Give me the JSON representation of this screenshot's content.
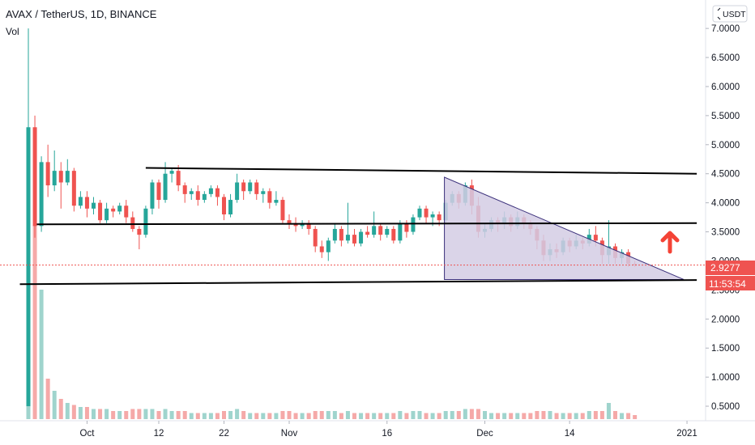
{
  "header": {
    "title": "AVAX / TetherUS, 1D, BINANCE",
    "volume_label": "Vol",
    "currency_button": "USDT"
  },
  "price_badge": {
    "value": "2.9277",
    "color": "#ef5350"
  },
  "countdown_badge": {
    "value": "11:53:54",
    "color": "#ef5350"
  },
  "colors": {
    "up": "#26a69a",
    "down": "#ef5350",
    "volume_up": "#9fd4cd",
    "volume_down": "#f5a9a8",
    "triangle_fill": "#d4cde4",
    "triangle_stroke": "#3a2f7a",
    "trendline": "#000000",
    "arrow": "#f44336"
  },
  "icons": {
    "arrow": "arrow-up-icon",
    "currency": "chevron-icon"
  },
  "chart_data": {
    "type": "candlestick",
    "title": "AVAX / TetherUS, 1D, BINANCE",
    "y_range": [
      0.25,
      7.35
    ],
    "y_ticks": [
      "7.0000",
      "6.5000",
      "6.0000",
      "5.5000",
      "5.0000",
      "4.5000",
      "4.0000",
      "3.5000",
      "3.0000",
      "2.5000",
      "2.0000",
      "1.5000",
      "1.0000",
      "0.5000"
    ],
    "x_ticks": [
      {
        "label": "Oct",
        "day": 9
      },
      {
        "label": "12",
        "day": 20
      },
      {
        "label": "22",
        "day": 30
      },
      {
        "label": "Nov",
        "day": 40
      },
      {
        "label": "16",
        "day": 55
      },
      {
        "label": "Dec",
        "day": 70
      },
      {
        "label": "14",
        "day": 83
      },
      {
        "label": "2021",
        "day": 101
      }
    ],
    "current_price": 2.9277,
    "candles": [
      [
        0.5,
        5.3,
        0.5,
        7.0,
        0.8
      ],
      [
        5.3,
        3.6,
        3.4,
        5.5,
        4.8
      ],
      [
        3.6,
        4.7,
        3.5,
        4.8,
        3.2
      ],
      [
        4.7,
        4.3,
        4.1,
        5.0,
        1.0
      ],
      [
        4.3,
        4.55,
        4.2,
        4.9,
        0.7
      ],
      [
        4.55,
        4.35,
        3.9,
        4.7,
        0.5
      ],
      [
        4.35,
        4.55,
        4.3,
        4.75,
        0.4
      ],
      [
        4.55,
        3.95,
        3.85,
        4.6,
        0.35
      ],
      [
        3.95,
        4.1,
        3.9,
        4.2,
        0.3
      ],
      [
        4.1,
        3.9,
        3.75,
        4.2,
        0.3
      ],
      [
        3.9,
        4.0,
        3.8,
        4.1,
        0.25
      ],
      [
        4.0,
        3.7,
        3.65,
        4.05,
        0.25
      ],
      [
        3.7,
        3.9,
        3.65,
        4.0,
        0.25
      ],
      [
        3.9,
        3.85,
        3.75,
        3.95,
        0.2
      ],
      [
        3.85,
        3.95,
        3.8,
        4.0,
        0.2
      ],
      [
        3.95,
        3.75,
        3.65,
        4.05,
        0.2
      ],
      [
        3.75,
        3.55,
        3.5,
        3.85,
        0.25
      ],
      [
        3.55,
        3.45,
        3.2,
        3.6,
        0.25
      ],
      [
        3.45,
        3.9,
        3.4,
        3.95,
        0.25
      ],
      [
        3.9,
        4.35,
        3.8,
        4.4,
        0.25
      ],
      [
        4.35,
        4.05,
        3.9,
        4.4,
        0.2
      ],
      [
        4.05,
        4.5,
        4.0,
        4.7,
        0.25
      ],
      [
        4.5,
        4.55,
        4.35,
        4.6,
        0.2
      ],
      [
        4.55,
        4.3,
        4.2,
        4.65,
        0.2
      ],
      [
        4.3,
        4.15,
        4.0,
        4.35,
        0.2
      ],
      [
        4.15,
        4.2,
        4.05,
        4.25,
        0.15
      ],
      [
        4.2,
        4.05,
        3.95,
        4.3,
        0.15
      ],
      [
        4.05,
        4.15,
        4.0,
        4.2,
        0.15
      ],
      [
        4.15,
        4.25,
        4.1,
        4.3,
        0.15
      ],
      [
        4.25,
        4.1,
        3.95,
        4.3,
        0.15
      ],
      [
        4.1,
        3.8,
        3.7,
        4.15,
        0.2
      ],
      [
        3.8,
        4.05,
        3.75,
        4.15,
        0.2
      ],
      [
        4.05,
        4.35,
        4.0,
        4.5,
        0.25
      ],
      [
        4.35,
        4.2,
        4.05,
        4.4,
        0.2
      ],
      [
        4.2,
        4.35,
        4.15,
        4.4,
        0.15
      ],
      [
        4.35,
        4.15,
        4.05,
        4.4,
        0.15
      ],
      [
        4.15,
        4.2,
        4.0,
        4.25,
        0.15
      ],
      [
        4.2,
        4.0,
        3.9,
        4.25,
        0.15
      ],
      [
        4.0,
        4.05,
        3.95,
        4.2,
        0.15
      ],
      [
        4.05,
        3.7,
        3.65,
        4.1,
        0.2
      ],
      [
        3.7,
        3.65,
        3.55,
        3.8,
        0.2
      ],
      [
        3.65,
        3.6,
        3.5,
        3.75,
        0.15
      ],
      [
        3.6,
        3.65,
        3.55,
        3.7,
        0.15
      ],
      [
        3.65,
        3.55,
        3.45,
        3.7,
        0.15
      ],
      [
        3.55,
        3.25,
        3.15,
        3.6,
        0.2
      ],
      [
        3.25,
        3.15,
        3.05,
        3.35,
        0.2
      ],
      [
        3.15,
        3.35,
        3.0,
        3.4,
        0.2
      ],
      [
        3.35,
        3.55,
        3.3,
        3.65,
        0.2
      ],
      [
        3.55,
        3.35,
        3.25,
        3.6,
        0.15
      ],
      [
        3.35,
        3.45,
        3.3,
        4.0,
        0.2
      ],
      [
        3.45,
        3.3,
        3.25,
        3.55,
        0.15
      ],
      [
        3.3,
        3.5,
        3.25,
        3.55,
        0.15
      ],
      [
        3.5,
        3.45,
        3.4,
        3.6,
        0.15
      ],
      [
        3.45,
        3.6,
        3.4,
        3.85,
        0.15
      ],
      [
        3.6,
        3.45,
        3.35,
        3.65,
        0.15
      ],
      [
        3.45,
        3.55,
        3.4,
        3.6,
        0.15
      ],
      [
        3.55,
        3.35,
        3.3,
        3.6,
        0.15
      ],
      [
        3.35,
        3.65,
        3.3,
        3.7,
        0.2
      ],
      [
        3.65,
        3.5,
        3.4,
        3.7,
        0.15
      ],
      [
        3.5,
        3.75,
        3.45,
        3.8,
        0.2
      ],
      [
        3.75,
        3.9,
        3.7,
        3.95,
        0.2
      ],
      [
        3.9,
        3.75,
        3.65,
        3.95,
        0.15
      ],
      [
        3.75,
        3.8,
        3.6,
        3.85,
        0.15
      ],
      [
        3.8,
        3.7,
        3.6,
        3.85,
        0.15
      ],
      [
        3.7,
        4.0,
        3.65,
        4.05,
        0.2
      ],
      [
        4.0,
        4.15,
        3.95,
        4.2,
        0.2
      ],
      [
        4.15,
        4.0,
        3.9,
        4.2,
        0.2
      ],
      [
        4.0,
        4.3,
        3.95,
        4.35,
        0.25
      ],
      [
        4.3,
        3.95,
        3.8,
        4.4,
        0.25
      ],
      [
        3.95,
        3.5,
        3.4,
        4.1,
        0.25
      ],
      [
        3.5,
        3.55,
        3.4,
        3.65,
        0.2
      ],
      [
        3.55,
        3.7,
        3.5,
        3.75,
        0.15
      ],
      [
        3.7,
        3.65,
        3.5,
        3.75,
        0.15
      ],
      [
        3.65,
        3.75,
        3.55,
        3.85,
        0.15
      ],
      [
        3.75,
        3.6,
        3.5,
        3.8,
        0.15
      ],
      [
        3.6,
        3.75,
        3.55,
        3.85,
        0.15
      ],
      [
        3.75,
        3.65,
        3.55,
        3.8,
        0.15
      ],
      [
        3.65,
        3.55,
        3.45,
        3.7,
        0.15
      ],
      [
        3.55,
        3.35,
        3.2,
        3.6,
        0.2
      ],
      [
        3.35,
        3.1,
        3.0,
        3.45,
        0.2
      ],
      [
        3.1,
        3.2,
        3.0,
        3.3,
        0.2
      ],
      [
        3.2,
        3.15,
        3.05,
        3.3,
        0.15
      ],
      [
        3.15,
        3.35,
        3.1,
        3.4,
        0.15
      ],
      [
        3.35,
        3.25,
        3.15,
        3.4,
        0.15
      ],
      [
        3.25,
        3.35,
        3.2,
        3.45,
        0.15
      ],
      [
        3.35,
        3.3,
        3.2,
        3.4,
        0.15
      ],
      [
        3.3,
        3.45,
        3.25,
        3.55,
        0.2
      ],
      [
        3.45,
        3.35,
        3.25,
        3.6,
        0.2
      ],
      [
        3.35,
        3.1,
        2.95,
        3.4,
        0.2
      ],
      [
        3.1,
        3.25,
        2.95,
        3.7,
        0.4
      ],
      [
        3.25,
        3.05,
        2.95,
        3.3,
        0.2
      ],
      [
        3.05,
        3.15,
        2.95,
        3.2,
        0.15
      ],
      [
        3.15,
        2.95,
        2.9,
        3.2,
        0.15
      ],
      [
        2.95,
        2.93,
        2.9,
        3.0,
        0.1
      ]
    ]
  }
}
